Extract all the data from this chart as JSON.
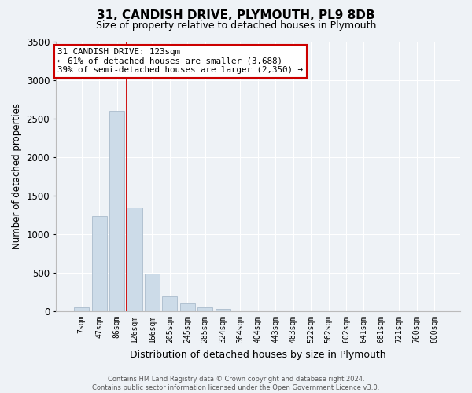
{
  "title": "31, CANDISH DRIVE, PLYMOUTH, PL9 8DB",
  "subtitle": "Size of property relative to detached houses in Plymouth",
  "xlabel": "Distribution of detached houses by size in Plymouth",
  "ylabel": "Number of detached properties",
  "bar_labels": [
    "7sqm",
    "47sqm",
    "86sqm",
    "126sqm",
    "166sqm",
    "205sqm",
    "245sqm",
    "285sqm",
    "324sqm",
    "364sqm",
    "404sqm",
    "443sqm",
    "483sqm",
    "522sqm",
    "562sqm",
    "602sqm",
    "641sqm",
    "681sqm",
    "721sqm",
    "760sqm",
    "800sqm"
  ],
  "bar_values": [
    50,
    1230,
    2600,
    1350,
    490,
    195,
    105,
    50,
    35,
    5,
    0,
    0,
    0,
    0,
    0,
    0,
    0,
    0,
    0,
    0,
    0
  ],
  "bar_color": "#ccdbe8",
  "bar_edgecolor": "#aabccc",
  "vline_color": "#cc0000",
  "vline_index": 3,
  "ylim": [
    0,
    3500
  ],
  "yticks": [
    0,
    500,
    1000,
    1500,
    2000,
    2500,
    3000,
    3500
  ],
  "annotation_title": "31 CANDISH DRIVE: 123sqm",
  "annotation_line1": "← 61% of detached houses are smaller (3,688)",
  "annotation_line2": "39% of semi-detached houses are larger (2,350) →",
  "annotation_box_facecolor": "#ffffff",
  "annotation_box_edgecolor": "#cc0000",
  "footer_line1": "Contains HM Land Registry data © Crown copyright and database right 2024.",
  "footer_line2": "Contains public sector information licensed under the Open Government Licence v3.0.",
  "background_color": "#eef2f6",
  "grid_color": "#ffffff",
  "title_fontsize": 11,
  "subtitle_fontsize": 9,
  "ylabel_fontsize": 8.5,
  "xlabel_fontsize": 9
}
